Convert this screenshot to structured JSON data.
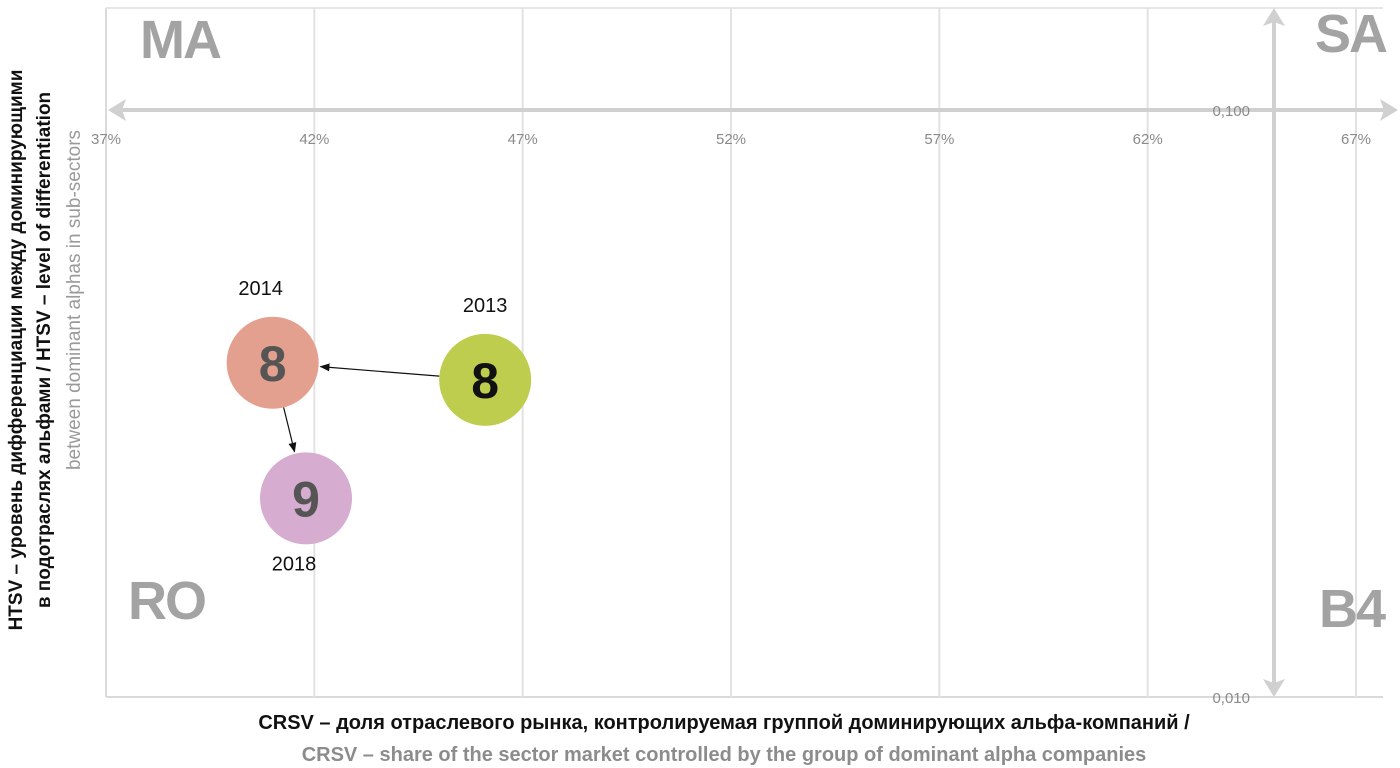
{
  "chart_data": {
    "type": "scatter",
    "title": "",
    "x_ticks": [
      "37%",
      "42%",
      "47%",
      "52%",
      "57%",
      "62%",
      "67%"
    ],
    "x_tick_values": [
      37,
      42,
      47,
      52,
      57,
      62,
      67
    ],
    "xlim": [
      37,
      67
    ],
    "y_scale": "log",
    "y_ticks": [
      "0,100",
      "0,010"
    ],
    "y_tick_values": [
      0.1,
      0.01
    ],
    "ylim": [
      0.01,
      0.1
    ],
    "grid": true,
    "xlabel_ru": "CRSV – доля отраслевого рынка, контролируемая группой доминирующих альфа-компаний /",
    "xlabel_en": "CRSV – share of the sector market controlled by the group of dominant alpha companies",
    "ylabel_ru_line1": "HTSV – уровень дифференциации между доминирующими",
    "ylabel_ru_line2": "в подотраслях альфами / HTSV – level of differentiation",
    "ylabel_en": "between dominant alphas in sub-sectors",
    "quadrants": {
      "top_left": "MA",
      "top_right": "SA",
      "bottom_left": "RO",
      "bottom_right": "B4"
    },
    "points": [
      {
        "year": "2013",
        "label": "8",
        "x": 46.1,
        "y": 0.0347,
        "color": "#bfcd4f",
        "text_color": "#111111"
      },
      {
        "year": "2014",
        "label": "8",
        "x": 41.0,
        "y": 0.0371,
        "color": "#e3a08e",
        "text_color": "#555555"
      },
      {
        "year": "2018",
        "label": "9",
        "x": 41.8,
        "y": 0.0218,
        "color": "#d6acd1",
        "text_color": "#555555"
      }
    ],
    "arrows": [
      {
        "from": "2013",
        "to": "2014"
      },
      {
        "from": "2014",
        "to": "2018"
      }
    ]
  }
}
